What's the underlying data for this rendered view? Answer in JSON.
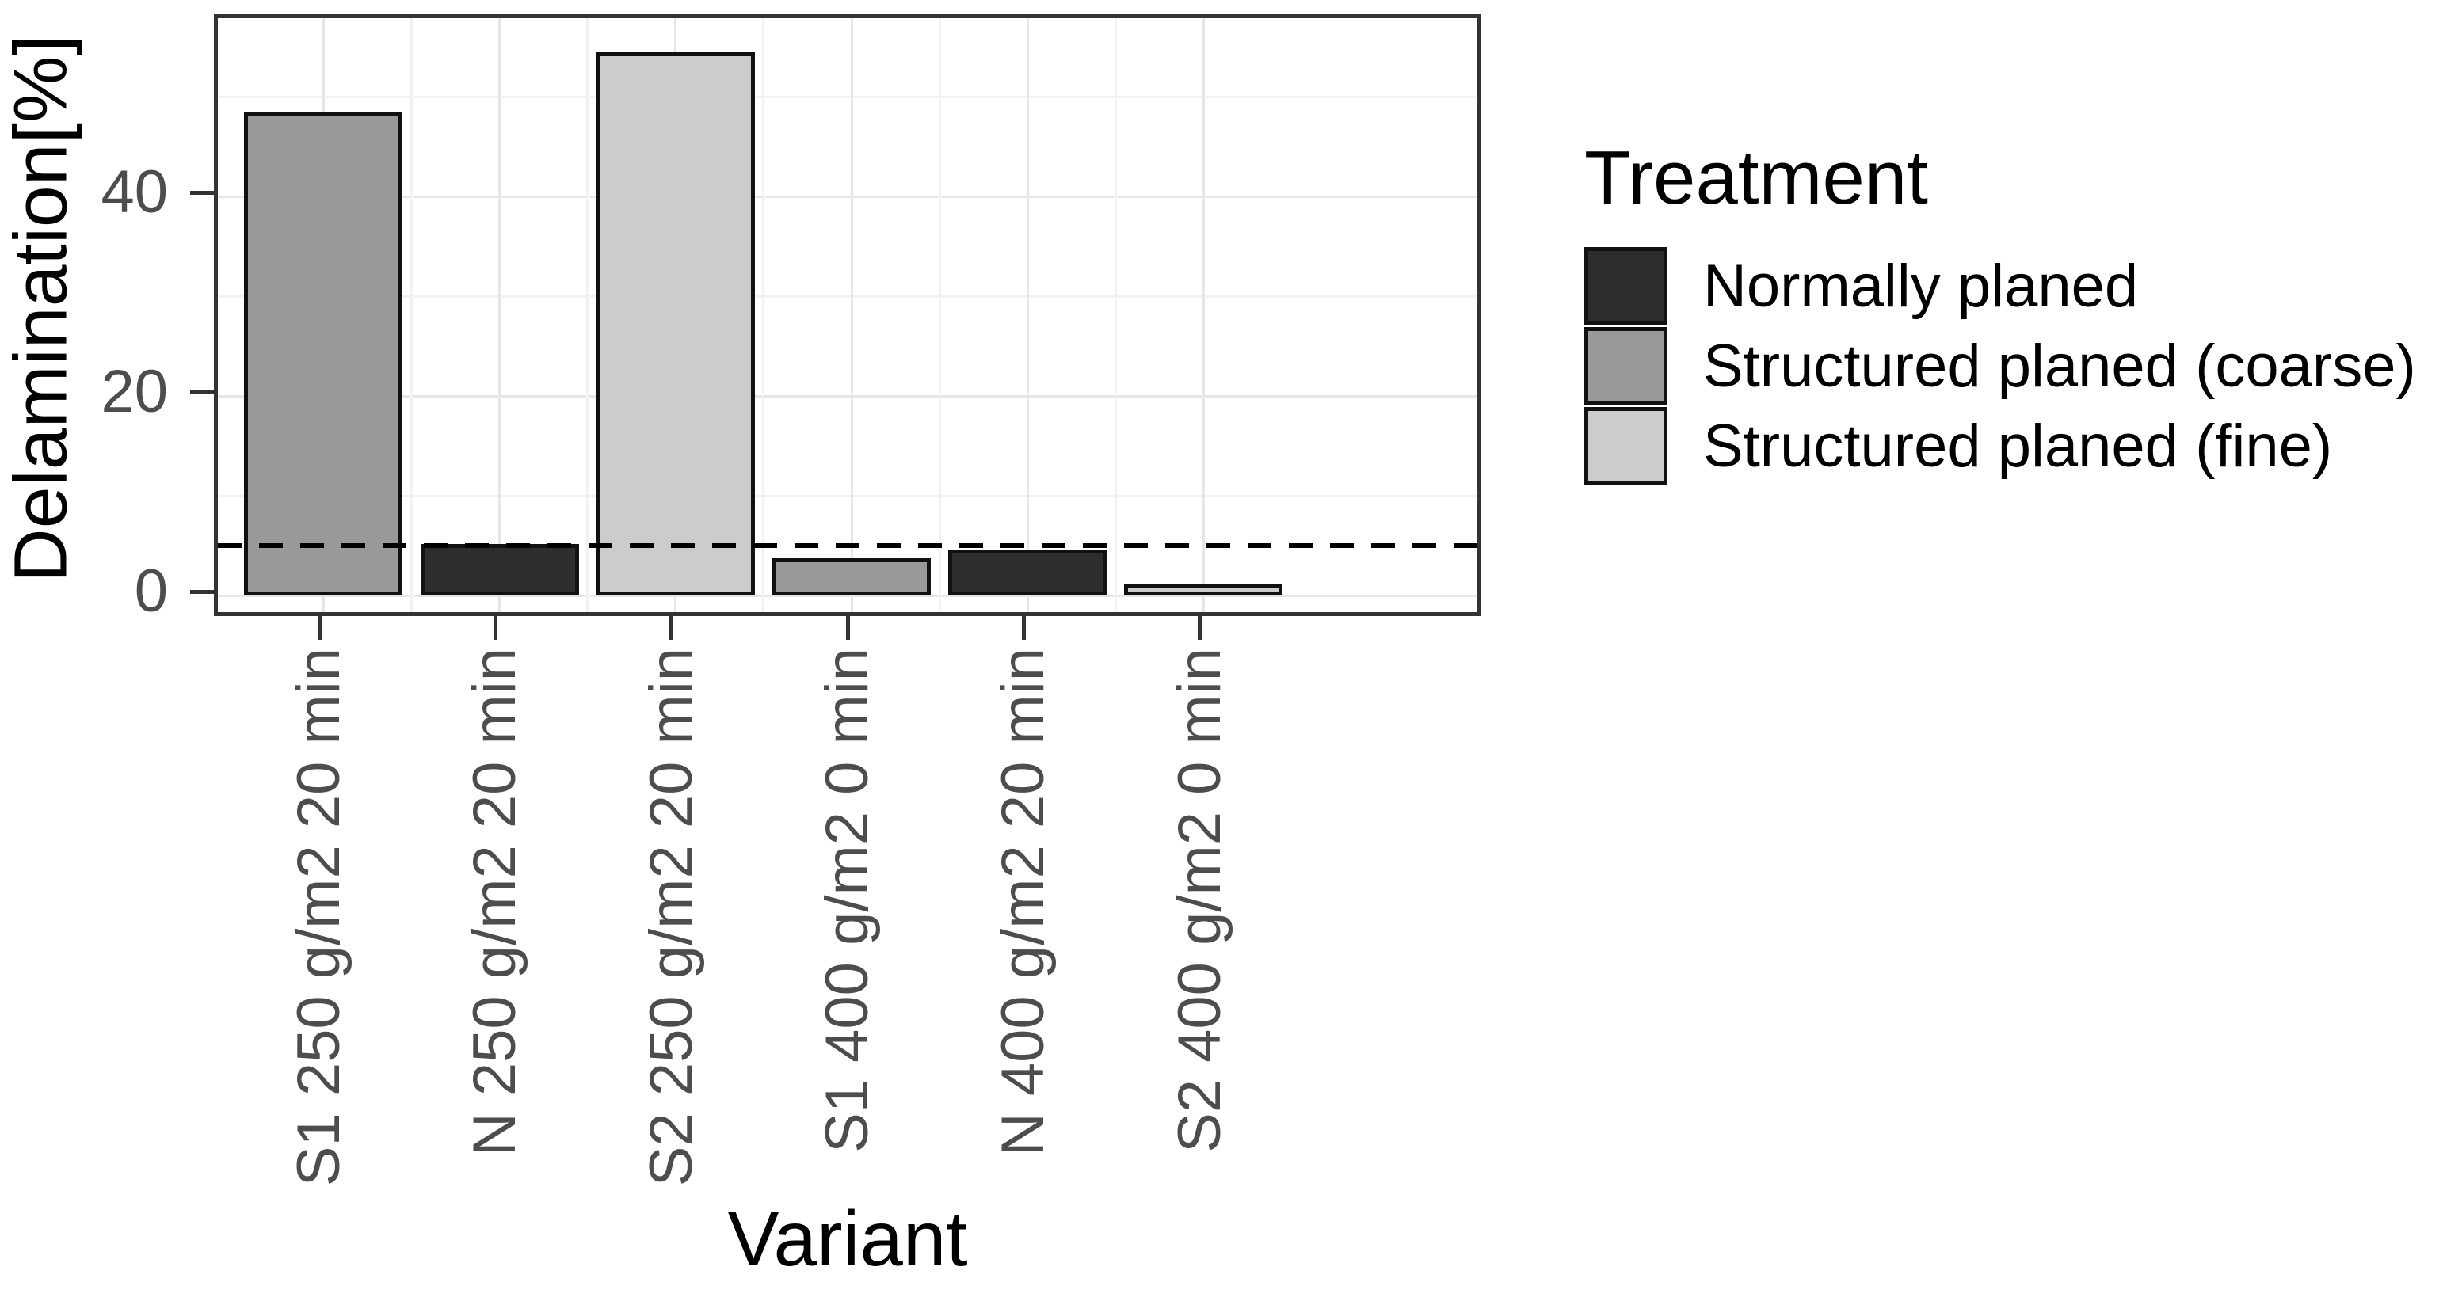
{
  "chart_data": {
    "type": "bar",
    "title": "",
    "xlabel": "Variant",
    "ylabel": "Delamination[%]",
    "categories": [
      "S1 250 g/m2 20 min",
      "N 250 g/m2 20 min",
      "S2 250 g/m2 20 min",
      "S1 400 g/m2 0 min",
      "N 400 g/m2 20 min",
      "S2 400 g/m2 0 min"
    ],
    "values": [
      48.5,
      5.2,
      54.5,
      3.7,
      4.6,
      1.2
    ],
    "bar_treatments": [
      "Structured planed (coarse)",
      "Normally planed",
      "Structured planed (fine)",
      "Structured planed (coarse)",
      "Normally planed",
      "Structured planed (fine)"
    ],
    "reference_line_y": 5,
    "ylim": [
      0,
      57.9
    ],
    "yticks": [
      0,
      20,
      40
    ],
    "yticks_minor": [
      10,
      30,
      50
    ],
    "grid": "on",
    "legend_position": "right",
    "legend": {
      "title": "Treatment",
      "entries": [
        {
          "label": "Normally planed",
          "color": "#2d2d2d"
        },
        {
          "label": "Structured planed (coarse)",
          "color": "#999999"
        },
        {
          "label": "Structured planed (fine)",
          "color": "#cccccc"
        }
      ]
    },
    "colors": {
      "bar_border": "#111111",
      "reference_line": "#000000",
      "panel_border": "#333333",
      "grid_major": "#e6e6e6",
      "grid_minor": "#f2f2f2",
      "tick_text": "#4d4d4d",
      "title_text": "#000000",
      "background": "#ffffff"
    }
  }
}
